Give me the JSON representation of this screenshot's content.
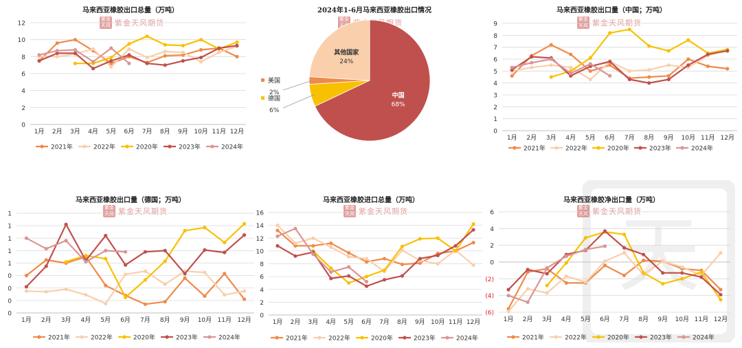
{
  "legend_labels": [
    "2021年",
    "2022年",
    "2020年",
    "2023年",
    "2024年"
  ],
  "colors": {
    "s2021": "#ef8a4a",
    "s2022": "#f9cfac",
    "s2020": "#f7c100",
    "s2023": "#c0504d",
    "s2024": "#d99594"
  },
  "watermark": "紫金天风期货",
  "chart_data": [
    {
      "type": "line",
      "title": "马来西亚橡胶出口总量（万吨）",
      "ylim": [
        0,
        12
      ],
      "yticks": [
        "0",
        "2",
        "4",
        "6",
        "8",
        "10",
        "12"
      ],
      "categories": [
        "1月",
        "2月",
        "3月",
        "4月",
        "5月",
        "6月",
        "7月",
        "8月",
        "9月",
        "10月",
        "11月",
        "12月"
      ],
      "series": [
        {
          "name": "2021年",
          "values": [
            7.5,
            9.6,
            10.0,
            8.7,
            7.2,
            8.0,
            7.3,
            8.1,
            8.2,
            8.8,
            9.0,
            8.0
          ]
        },
        {
          "name": "2022年",
          "values": [
            8.0,
            8.0,
            8.3,
            8.9,
            6.8,
            8.9,
            7.9,
            8.6,
            8.5,
            7.4,
            8.5,
            9.2
          ]
        },
        {
          "name": "2020年",
          "values": [
            null,
            null,
            7.2,
            7.2,
            7.9,
            9.5,
            10.4,
            9.4,
            9.3,
            10.0,
            8.9,
            9.7
          ]
        },
        {
          "name": "2023年",
          "values": [
            7.5,
            8.4,
            8.4,
            6.6,
            7.5,
            8.2,
            7.2,
            7.0,
            7.5,
            7.9,
            9.0,
            9.3
          ]
        },
        {
          "name": "2024年",
          "values": [
            8.2,
            8.7,
            8.8,
            7.4,
            9.0,
            7.2,
            null,
            null,
            null,
            null,
            null,
            null
          ]
        }
      ]
    },
    {
      "type": "pie",
      "title": "2024年1-6月马来西亚橡胶出口情况",
      "slices": [
        {
          "label": "中国",
          "value": 68,
          "text": "68%",
          "color": "#c0504d"
        },
        {
          "label": "德国",
          "value": 6,
          "text": "6%",
          "color": "#f7c100"
        },
        {
          "label": "美国",
          "value": 2,
          "text": "2%",
          "color": "#ef8a4a"
        },
        {
          "label": "其他国家",
          "value": 24,
          "text": "24%",
          "color": "#f9cfac"
        }
      ]
    },
    {
      "type": "line",
      "title": "马来西亚橡胶出口量（中国；万吨）",
      "ylim": [
        0,
        9
      ],
      "yticks": [
        "0",
        "1",
        "2",
        "3",
        "4",
        "5",
        "6",
        "7",
        "8",
        "9"
      ],
      "categories": [
        "1月",
        "2月",
        "3月",
        "4月",
        "5月",
        "6月",
        "7月",
        "8月",
        "9月",
        "10月",
        "11月",
        "12月"
      ],
      "series": [
        {
          "name": "2021年",
          "values": [
            4.6,
            6.3,
            7.2,
            6.4,
            5.0,
            5.5,
            4.4,
            4.5,
            4.6,
            6.0,
            5.4,
            5.2
          ]
        },
        {
          "name": "2022年",
          "values": [
            5.0,
            5.3,
            5.5,
            5.3,
            4.3,
            5.8,
            5.0,
            5.1,
            5.5,
            5.3,
            6.3,
            6.8
          ]
        },
        {
          "name": "2020年",
          "values": [
            null,
            null,
            4.5,
            5.0,
            6.1,
            8.2,
            8.5,
            7.1,
            6.7,
            7.6,
            6.5,
            6.8
          ]
        },
        {
          "name": "2023年",
          "values": [
            5.1,
            6.2,
            6.1,
            4.6,
            5.4,
            5.8,
            4.3,
            4.0,
            4.3,
            5.5,
            6.4,
            6.7
          ]
        },
        {
          "name": "2024年",
          "values": [
            5.3,
            5.7,
            6.0,
            4.8,
            5.6,
            4.6,
            null,
            null,
            null,
            null,
            null,
            null
          ]
        }
      ]
    },
    {
      "type": "line",
      "title": "马来西亚橡胶出口量（德国；万吨）",
      "ylim": [
        0,
        1.6
      ],
      "yticks": [
        "0",
        "0",
        "0",
        "0",
        "1",
        "1",
        "1",
        "1",
        "1"
      ],
      "categories": [
        "1月",
        "2月",
        "3月",
        "4月",
        "5月",
        "6月",
        "7月",
        "8月",
        "9月",
        "10月",
        "11月",
        "12月"
      ],
      "series": [
        {
          "name": "2021年",
          "values": [
            0.6,
            0.85,
            0.8,
            0.9,
            0.44,
            0.28,
            0.14,
            0.18,
            0.56,
            0.27,
            0.63,
            0.22
          ]
        },
        {
          "name": "2022年",
          "values": [
            0.35,
            0.34,
            0.38,
            0.29,
            0.15,
            0.62,
            0.67,
            0.46,
            0.67,
            0.65,
            0.29,
            0.35
          ]
        },
        {
          "name": "2020年",
          "values": [
            null,
            null,
            0.82,
            0.92,
            0.87,
            0.25,
            0.53,
            0.83,
            1.32,
            1.37,
            1.13,
            1.43
          ]
        },
        {
          "name": "2023年",
          "values": [
            0.42,
            0.75,
            1.42,
            0.84,
            1.24,
            0.77,
            0.98,
            1.0,
            0.63,
            1.01,
            0.97,
            1.25
          ]
        },
        {
          "name": "2024年",
          "values": [
            1.2,
            1.03,
            1.16,
            0.82,
            1.0,
            0.98,
            null,
            null,
            null,
            null,
            null,
            null
          ]
        }
      ]
    },
    {
      "type": "line",
      "title": "马来西亚橡胶进口总量（万吨）",
      "ylim": [
        0,
        16
      ],
      "yticks": [
        "0",
        "2",
        "4",
        "6",
        "8",
        "10",
        "12",
        "14",
        "16"
      ],
      "categories": [
        "1月",
        "2月",
        "3月",
        "4月",
        "5月",
        "6月",
        "7月",
        "8月",
        "9月",
        "10月",
        "11月",
        "12月"
      ],
      "series": [
        {
          "name": "2021年",
          "values": [
            13.2,
            10.8,
            10.8,
            11.2,
            9.7,
            8.3,
            8.8,
            7.9,
            8.1,
            9.6,
            10.0,
            11.3
          ]
        },
        {
          "name": "2022年",
          "values": [
            14.0,
            11.2,
            12.0,
            10.6,
            9.1,
            8.8,
            6.8,
            10.1,
            8.5,
            8.0,
            10.1,
            7.8
          ]
        },
        {
          "name": "2020年",
          "values": [
            null,
            null,
            10.0,
            7.3,
            5.0,
            6.0,
            7.0,
            10.7,
            11.9,
            12.0,
            10.0,
            14.2
          ]
        },
        {
          "name": "2023年",
          "values": [
            10.8,
            9.2,
            9.8,
            5.7,
            6.1,
            4.5,
            5.5,
            6.1,
            8.8,
            9.3,
            10.8,
            13.3
          ]
        },
        {
          "name": "2024年",
          "values": [
            12.3,
            13.5,
            9.5,
            6.7,
            7.5,
            5.2,
            null,
            null,
            null,
            null,
            null,
            null
          ]
        }
      ]
    },
    {
      "type": "line",
      "title": "马来西亚橡胶净出口量（万吨）",
      "ylim": [
        -6,
        6
      ],
      "yticks": [
        "(6)",
        "(4)",
        "(2)",
        "0",
        "2",
        "4",
        "6"
      ],
      "categories": [
        "1月",
        "2月",
        "3月",
        "4月",
        "5月",
        "6月",
        "7月",
        "8月",
        "9月",
        "10月",
        "11月",
        "12月"
      ],
      "series": [
        {
          "name": "2021年",
          "values": [
            -5.6,
            -1.2,
            -0.8,
            -2.5,
            -2.5,
            -0.4,
            -1.6,
            0.2,
            0.1,
            -0.8,
            -1.0,
            -3.3
          ]
        },
        {
          "name": "2022年",
          "values": [
            -5.9,
            -3.2,
            -3.7,
            -1.7,
            -2.4,
            0.1,
            1.1,
            -1.5,
            0.1,
            -0.6,
            -1.6,
            1.1
          ]
        },
        {
          "name": "2020年",
          "values": [
            null,
            null,
            -2.8,
            -0.1,
            2.9,
            3.6,
            3.3,
            -1.3,
            -2.6,
            -2.0,
            -1.2,
            -4.5
          ]
        },
        {
          "name": "2023年",
          "values": [
            -3.3,
            -0.9,
            -1.4,
            0.9,
            1.4,
            3.7,
            1.7,
            0.9,
            -1.3,
            -1.3,
            -1.8,
            -3.9
          ]
        },
        {
          "name": "2024年",
          "values": [
            -4.0,
            -4.8,
            -0.7,
            0.7,
            1.5,
            1.9,
            null,
            null,
            null,
            null,
            null,
            null
          ]
        }
      ]
    }
  ]
}
